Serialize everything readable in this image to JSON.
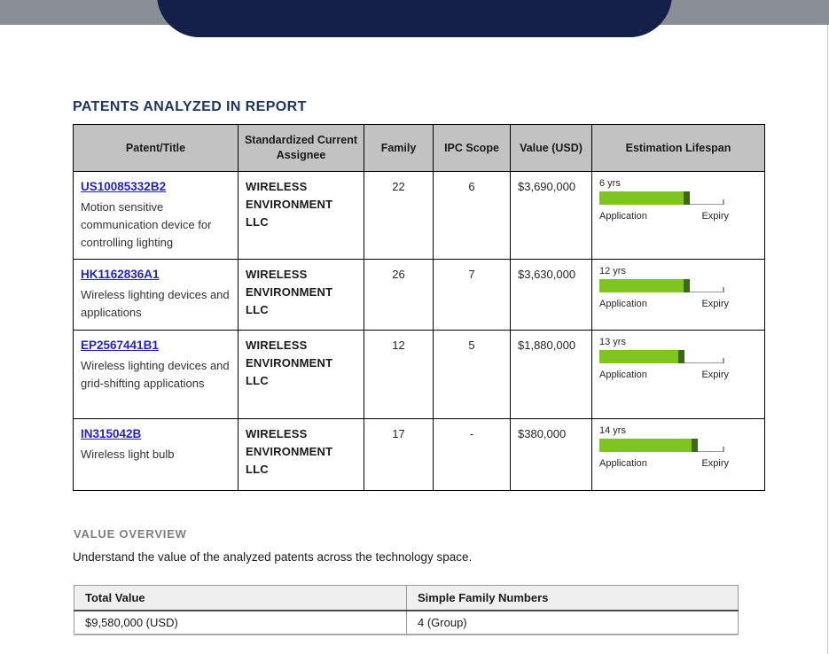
{
  "report": {
    "title": "PATENTS ANALYZED IN REPORT"
  },
  "patents_table": {
    "headers": [
      "Patent/Title",
      "Standardized Current Assignee",
      "Family",
      "IPC Scope",
      "Value (USD)",
      "Estimation Lifespan"
    ],
    "rows": [
      {
        "patent_id": "US10085332B2",
        "title": "Motion sensitive communication device for controlling lighting",
        "assignee": "WIRELESS ENVIRONMENT LLC",
        "family": "22",
        "ipc_scope": "6",
        "value_usd": "$3,690,000",
        "lifespan": {
          "years_label": "6 yrs",
          "elapsed_percent": 72,
          "start_label": "Application",
          "end_label": "Expiry"
        }
      },
      {
        "patent_id": "HK1162836A1",
        "title": "Wireless lighting devices and applications",
        "assignee": "WIRELESS ENVIRONMENT LLC",
        "family": "26",
        "ipc_scope": "7",
        "value_usd": "$3,630,000",
        "lifespan": {
          "years_label": "12 yrs",
          "elapsed_percent": 72,
          "start_label": "Application",
          "end_label": "Expiry"
        }
      },
      {
        "patent_id": "EP2567441B1",
        "title": "Wireless lighting devices and grid-shifting applications",
        "assignee": "WIRELESS ENVIRONMENT LLC",
        "family": "12",
        "ipc_scope": "5",
        "value_usd": "$1,880,000",
        "lifespan": {
          "years_label": "13 yrs",
          "elapsed_percent": 68,
          "start_label": "Application",
          "end_label": "Expiry"
        }
      },
      {
        "patent_id": "IN315042B",
        "title": "Wireless light bulb",
        "assignee": "WIRELESS ENVIRONMENT LLC",
        "family": "17",
        "ipc_scope": "-",
        "value_usd": "$380,000",
        "lifespan": {
          "years_label": "14 yrs",
          "elapsed_percent": 79,
          "start_label": "Application",
          "end_label": "Expiry"
        }
      }
    ]
  },
  "value_overview": {
    "heading": "VALUE OVERVIEW",
    "description": "Understand the value of the analyzed patents across the technology space.",
    "table": {
      "headers": [
        "Total Value",
        "Simple Family Numbers"
      ],
      "values": [
        "$9,580,000 (USD)",
        "4 (Group)"
      ]
    }
  },
  "colors": {
    "accent_navy": "#14204A",
    "top_bar_gray": "#8A8E96",
    "table_header_gray": "#C2C2C2",
    "bar_green": "#7FC41F",
    "bar_green_dark": "#3D661E",
    "link_blue": "#2222CC",
    "heading_navy": "#1E3660",
    "subheading_gray": "#7F7F7F"
  }
}
